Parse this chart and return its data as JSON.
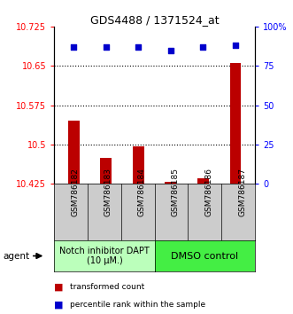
{
  "title": "GDS4488 / 1371524_at",
  "samples": [
    "GSM786182",
    "GSM786183",
    "GSM786184",
    "GSM786185",
    "GSM786186",
    "GSM786187"
  ],
  "bar_values": [
    10.545,
    10.474,
    10.497,
    10.428,
    10.436,
    10.656
  ],
  "percentile_values": [
    87,
    87,
    87,
    85,
    87,
    88
  ],
  "ylim_left": [
    10.425,
    10.725
  ],
  "ylim_right": [
    0,
    100
  ],
  "yticks_left": [
    10.425,
    10.5,
    10.575,
    10.65,
    10.725
  ],
  "ytick_labels_left": [
    "10.425",
    "10.5",
    "10.575",
    "10.65",
    "10.725"
  ],
  "yticks_right": [
    0,
    25,
    50,
    75,
    100
  ],
  "ytick_labels_right": [
    "0",
    "25",
    "50",
    "75",
    "100%"
  ],
  "hlines": [
    10.5,
    10.575,
    10.65
  ],
  "bar_color": "#bb0000",
  "dot_color": "#0000cc",
  "bar_width": 0.35,
  "group1_label": "Notch inhibitor DAPT\n(10 μM.)",
  "group2_label": "DMSO control",
  "group1_color": "#bbffbb",
  "group2_color": "#44ee44",
  "legend_bar_label": "transformed count",
  "legend_dot_label": "percentile rank within the sample",
  "agent_label": "agent",
  "sample_box_color": "#cccccc",
  "fig_bg": "#ffffff"
}
